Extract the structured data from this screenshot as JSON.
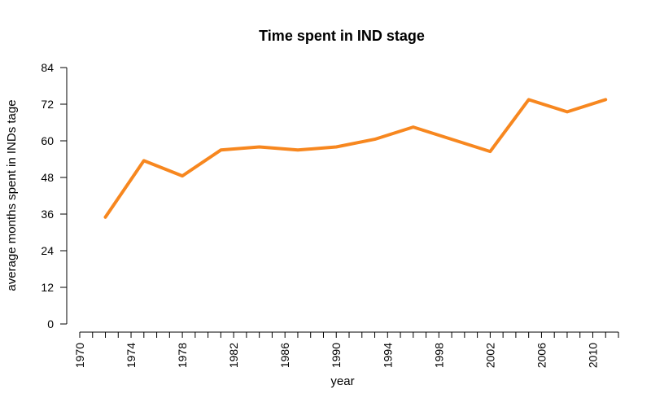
{
  "chart_data": {
    "type": "line",
    "title": "Time spent in IND stage",
    "xlabel": "year",
    "ylabel": "average months spent in INDs tage",
    "x": [
      1972,
      1975,
      1978,
      1981,
      1984,
      1987,
      1990,
      1993,
      1996,
      1999,
      2002,
      2005,
      2008,
      2011
    ],
    "series": [
      {
        "values": [
          35,
          53.5,
          48.5,
          57,
          58,
          57,
          58,
          60.5,
          64.5,
          60.5,
          56.5,
          73.5,
          69.5,
          73.5
        ],
        "color": "#f7871f"
      }
    ],
    "xlim": [
      1970,
      2012
    ],
    "ylim": [
      0,
      84
    ],
    "y_ticks": [
      0,
      12,
      24,
      36,
      48,
      60,
      72,
      84
    ],
    "x_ticks_labeled": [
      1970,
      1974,
      1978,
      1982,
      1986,
      1990,
      1994,
      1998,
      2002,
      2006,
      2010
    ],
    "x_minor_tick_step": 1,
    "grid": false,
    "legend": "none"
  }
}
